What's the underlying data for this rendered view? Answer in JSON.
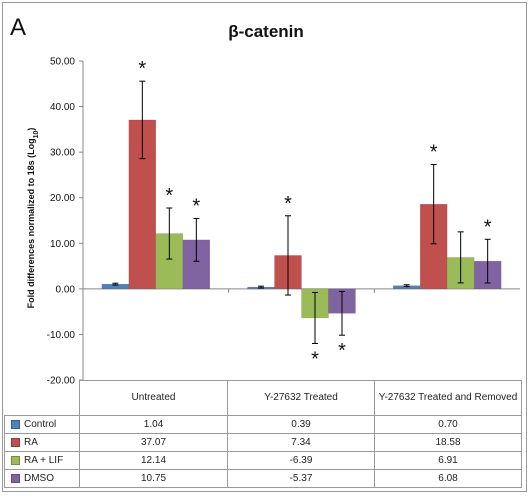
{
  "panel_letter": "A",
  "chart_data": {
    "type": "bar",
    "title": "β-catenin",
    "ylabel": "Fold differences normalized to 18s (Log10)",
    "ylim": [
      -20,
      50
    ],
    "yticks": [
      "50.00",
      "40.00",
      "30.00",
      "20.00",
      "10.00",
      "0.00",
      "-10.00",
      "-20.00"
    ],
    "categories": [
      "Untreated",
      "Y-27632 Treated",
      "Y-27632 Treated and Removed"
    ],
    "series": [
      {
        "name": "Control",
        "color": "#4f81bd",
        "values": [
          1.04,
          0.39,
          0.7
        ],
        "err": [
          0.2,
          0.2,
          0.2
        ],
        "sig": [
          false,
          false,
          false
        ]
      },
      {
        "name": "RA",
        "color": "#c0504d",
        "values": [
          37.07,
          7.34,
          18.58
        ],
        "err": [
          8.5,
          8.7,
          8.7
        ],
        "sig": [
          true,
          true,
          true
        ]
      },
      {
        "name": "RA + LIF",
        "color": "#9bbb59",
        "values": [
          12.14,
          -6.39,
          6.91
        ],
        "err": [
          5.6,
          5.6,
          5.6
        ],
        "sig": [
          true,
          true,
          false
        ]
      },
      {
        "name": "DMSO",
        "color": "#8064a2",
        "values": [
          10.75,
          -5.37,
          6.08
        ],
        "err": [
          4.7,
          4.8,
          4.8
        ],
        "sig": [
          true,
          true,
          true
        ]
      }
    ],
    "table_values": [
      [
        "1.04",
        "0.39",
        "0.70"
      ],
      [
        "37.07",
        "7.34",
        "18.58"
      ],
      [
        "12.14",
        "-6.39",
        "6.91"
      ],
      [
        "10.75",
        "-5.37",
        "6.08"
      ]
    ],
    "sig_marker": "*",
    "legend": "table-below"
  }
}
